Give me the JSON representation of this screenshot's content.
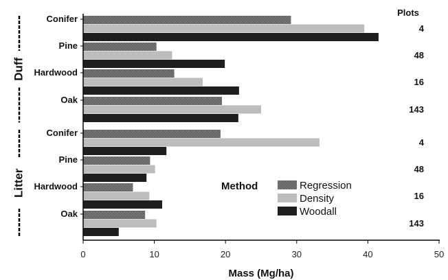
{
  "chart_data": {
    "type": "bar",
    "orientation": "horizontal",
    "xlabel": "Mass (Mg/ha)",
    "xlim": [
      0,
      50
    ],
    "x_ticks": [
      "0",
      "10",
      "20",
      "30",
      "40",
      "50"
    ],
    "groups": [
      {
        "label": "Duff",
        "categories": [
          {
            "label": "Conifer",
            "plots": "4",
            "values": [
              29.2,
              39.5,
              41.5
            ]
          },
          {
            "label": "Pine",
            "plots": "48",
            "values": [
              10.3,
              12.5,
              19.9
            ]
          },
          {
            "label": "Hardwood",
            "plots": "16",
            "values": [
              12.8,
              16.8,
              21.9
            ]
          },
          {
            "label": "Oak",
            "plots": "143",
            "values": [
              19.5,
              25.0,
              21.8
            ]
          }
        ]
      },
      {
        "label": "Litter",
        "categories": [
          {
            "label": "Conifer",
            "plots": "4",
            "values": [
              19.3,
              33.2,
              11.7
            ]
          },
          {
            "label": "Pine",
            "plots": "48",
            "values": [
              9.4,
              10.1,
              8.9
            ]
          },
          {
            "label": "Hardwood",
            "plots": "16",
            "values": [
              7.0,
              9.3,
              11.1
            ]
          },
          {
            "label": "Oak",
            "plots": "143",
            "values": [
              8.7,
              10.3,
              5.0
            ]
          }
        ]
      }
    ],
    "series": [
      {
        "name": "Regression",
        "color": "#666666",
        "pattern": "dotted"
      },
      {
        "name": "Density",
        "color": "#bdbdbd",
        "pattern": "solid"
      },
      {
        "name": "Woodall",
        "color": "#1e1e1e",
        "pattern": "solid"
      }
    ],
    "legend_title": "Method",
    "legend_position": "center-right",
    "plots_header": "Plots",
    "grid": false
  }
}
